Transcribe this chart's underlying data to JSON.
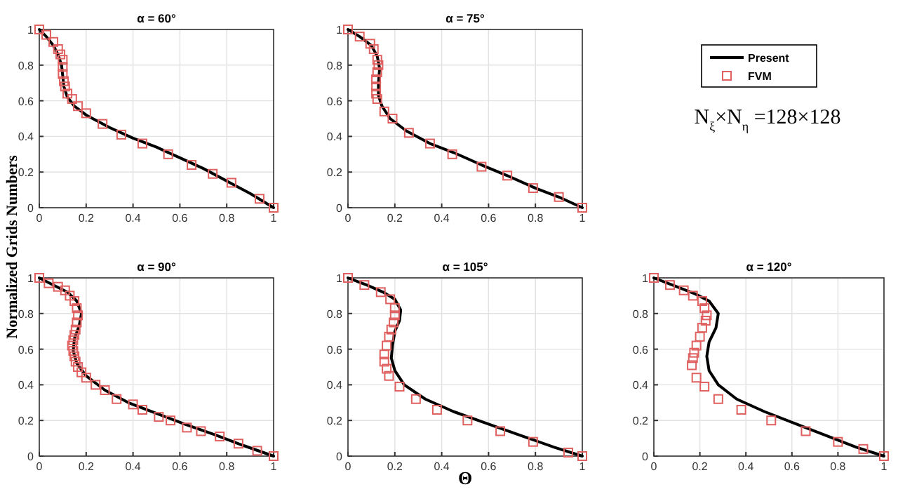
{
  "chart_data": [
    {
      "type": "line",
      "title": "α = 60°",
      "ylabel": "Normalized Grids Numbers",
      "xlim": [
        0,
        1
      ],
      "ylim": [
        0,
        1
      ],
      "xticks": [
        0,
        0.2,
        0.4,
        0.6,
        0.8,
        1
      ],
      "yticks": [
        0,
        0.2,
        0.4,
        0.6,
        0.8,
        1
      ],
      "grid": true,
      "series": [
        {
          "type": "line",
          "color": "#000000",
          "marker": "none",
          "x": [
            0,
            0.03,
            0.06,
            0.08,
            0.095,
            0.1,
            0.105,
            0.12,
            0.15,
            0.2,
            0.3,
            0.4,
            0.5,
            0.6,
            0.7,
            0.8,
            0.9,
            1
          ],
          "values": [
            1,
            0.96,
            0.91,
            0.86,
            0.8,
            0.74,
            0.68,
            0.62,
            0.57,
            0.52,
            0.45,
            0.39,
            0.34,
            0.28,
            0.22,
            0.15,
            0.08,
            0
          ]
        },
        {
          "type": "scatter",
          "color": "#e06060",
          "marker": "square",
          "x": [
            0,
            0.03,
            0.06,
            0.08,
            0.09,
            0.1,
            0.1,
            0.1,
            0.105,
            0.11,
            0.12,
            0.14,
            0.165,
            0.2,
            0.27,
            0.35,
            0.44,
            0.55,
            0.65,
            0.74,
            0.82,
            0.94,
            1
          ],
          "values": [
            1,
            0.97,
            0.93,
            0.89,
            0.86,
            0.83,
            0.79,
            0.75,
            0.71,
            0.68,
            0.64,
            0.61,
            0.57,
            0.53,
            0.47,
            0.41,
            0.36,
            0.3,
            0.24,
            0.19,
            0.14,
            0.05,
            0
          ]
        }
      ]
    },
    {
      "type": "line",
      "title": "α = 75°",
      "legend": "right",
      "xlim": [
        0,
        1
      ],
      "ylim": [
        0,
        1
      ],
      "xticks": [
        0,
        0.2,
        0.4,
        0.6,
        0.8,
        1
      ],
      "yticks": [
        0,
        0.2,
        0.4,
        0.6,
        0.8,
        1
      ],
      "grid": true,
      "series": [
        {
          "name": "Present",
          "type": "line",
          "color": "#000000",
          "marker": "none",
          "x": [
            0,
            0.05,
            0.1,
            0.125,
            0.135,
            0.13,
            0.13,
            0.145,
            0.18,
            0.25,
            0.35,
            0.45,
            0.57,
            0.68,
            0.8,
            0.9,
            1
          ],
          "values": [
            1,
            0.96,
            0.91,
            0.85,
            0.78,
            0.7,
            0.63,
            0.57,
            0.5,
            0.43,
            0.36,
            0.31,
            0.24,
            0.18,
            0.11,
            0.06,
            0
          ]
        },
        {
          "name": "FVM",
          "type": "scatter",
          "color": "#e06060",
          "marker": "square",
          "x": [
            0,
            0.05,
            0.095,
            0.11,
            0.125,
            0.13,
            0.125,
            0.12,
            0.12,
            0.12,
            0.125,
            0.155,
            0.19,
            0.26,
            0.35,
            0.445,
            0.57,
            0.68,
            0.79,
            0.9,
            1
          ],
          "values": [
            1,
            0.96,
            0.92,
            0.89,
            0.83,
            0.8,
            0.76,
            0.72,
            0.68,
            0.64,
            0.61,
            0.54,
            0.5,
            0.42,
            0.36,
            0.3,
            0.23,
            0.18,
            0.11,
            0.06,
            0
          ]
        }
      ]
    },
    {
      "type": "line",
      "title": "α = 90°",
      "xlim": [
        0,
        1
      ],
      "ylim": [
        0,
        1
      ],
      "xticks": [
        0,
        0.2,
        0.4,
        0.6,
        0.8,
        1
      ],
      "yticks": [
        0,
        0.2,
        0.4,
        0.6,
        0.8,
        1
      ],
      "grid": true,
      "series": [
        {
          "type": "line",
          "color": "#000000",
          "marker": "none",
          "x": [
            0,
            0.06,
            0.12,
            0.16,
            0.18,
            0.17,
            0.15,
            0.145,
            0.16,
            0.2,
            0.28,
            0.38,
            0.5,
            0.62,
            0.75,
            0.87,
            1
          ],
          "values": [
            1,
            0.96,
            0.92,
            0.87,
            0.8,
            0.73,
            0.66,
            0.59,
            0.52,
            0.45,
            0.37,
            0.3,
            0.24,
            0.18,
            0.12,
            0.06,
            0
          ]
        },
        {
          "type": "scatter",
          "color": "#e06060",
          "marker": "square",
          "x": [
            0,
            0.04,
            0.08,
            0.11,
            0.13,
            0.15,
            0.16,
            0.165,
            0.16,
            0.155,
            0.15,
            0.145,
            0.14,
            0.145,
            0.15,
            0.155,
            0.165,
            0.18,
            0.2,
            0.24,
            0.28,
            0.33,
            0.4,
            0.44,
            0.51,
            0.56,
            0.63,
            0.69,
            0.77,
            0.85,
            0.93,
            1
          ],
          "values": [
            1,
            0.97,
            0.95,
            0.93,
            0.9,
            0.87,
            0.83,
            0.79,
            0.75,
            0.71,
            0.68,
            0.65,
            0.62,
            0.59,
            0.56,
            0.53,
            0.5,
            0.47,
            0.44,
            0.4,
            0.37,
            0.32,
            0.29,
            0.26,
            0.22,
            0.2,
            0.16,
            0.14,
            0.11,
            0.07,
            0.03,
            0
          ]
        }
      ]
    },
    {
      "type": "line",
      "title": "α = 105°",
      "xlabel": "Θ",
      "xlim": [
        0,
        1
      ],
      "ylim": [
        0,
        1
      ],
      "xticks": [
        0,
        0.2,
        0.4,
        0.6,
        0.8,
        1
      ],
      "yticks": [
        0,
        0.2,
        0.4,
        0.6,
        0.8,
        1
      ],
      "grid": true,
      "series": [
        {
          "type": "line",
          "color": "#000000",
          "marker": "none",
          "x": [
            0,
            0.08,
            0.15,
            0.2,
            0.225,
            0.22,
            0.2,
            0.19,
            0.185,
            0.2,
            0.24,
            0.33,
            0.45,
            0.6,
            0.75,
            0.88,
            1
          ],
          "values": [
            1,
            0.96,
            0.92,
            0.88,
            0.82,
            0.76,
            0.7,
            0.62,
            0.55,
            0.48,
            0.4,
            0.32,
            0.25,
            0.18,
            0.11,
            0.05,
            0
          ]
        },
        {
          "type": "scatter",
          "color": "#e06060",
          "marker": "square",
          "x": [
            0,
            0.07,
            0.14,
            0.18,
            0.2,
            0.2,
            0.195,
            0.185,
            0.175,
            0.165,
            0.155,
            0.155,
            0.165,
            0.175,
            0.22,
            0.29,
            0.38,
            0.51,
            0.65,
            0.79,
            0.94,
            1
          ],
          "values": [
            1,
            0.96,
            0.92,
            0.88,
            0.83,
            0.79,
            0.75,
            0.71,
            0.67,
            0.62,
            0.57,
            0.53,
            0.49,
            0.45,
            0.39,
            0.32,
            0.26,
            0.2,
            0.14,
            0.08,
            0.02,
            0
          ]
        }
      ]
    },
    {
      "type": "line",
      "title": "α = 120°",
      "xlim": [
        0,
        1
      ],
      "ylim": [
        0,
        1
      ],
      "xticks": [
        0,
        0.2,
        0.4,
        0.6,
        0.8,
        1
      ],
      "yticks": [
        0,
        0.2,
        0.4,
        0.6,
        0.8,
        1
      ],
      "grid": true,
      "series": [
        {
          "type": "line",
          "color": "#000000",
          "marker": "none",
          "x": [
            0,
            0.1,
            0.18,
            0.24,
            0.28,
            0.27,
            0.24,
            0.23,
            0.24,
            0.28,
            0.36,
            0.48,
            0.62,
            0.76,
            0.88,
            1
          ],
          "values": [
            1,
            0.95,
            0.91,
            0.87,
            0.8,
            0.72,
            0.64,
            0.56,
            0.48,
            0.4,
            0.32,
            0.25,
            0.18,
            0.11,
            0.05,
            0
          ]
        },
        {
          "type": "scatter",
          "color": "#e06060",
          "marker": "square",
          "x": [
            0,
            0.07,
            0.13,
            0.17,
            0.21,
            0.22,
            0.23,
            0.225,
            0.21,
            0.2,
            0.185,
            0.175,
            0.17,
            0.165,
            0.185,
            0.22,
            0.28,
            0.38,
            0.51,
            0.66,
            0.8,
            0.91,
            1
          ],
          "values": [
            1,
            0.96,
            0.93,
            0.9,
            0.87,
            0.83,
            0.79,
            0.76,
            0.72,
            0.67,
            0.62,
            0.58,
            0.55,
            0.51,
            0.44,
            0.39,
            0.32,
            0.26,
            0.2,
            0.14,
            0.08,
            0.04,
            0
          ]
        }
      ]
    },
    {
      "type": "other",
      "annotations": [
        "N$_{ξ}$×N$_{η}$ =128×128"
      ]
    }
  ]
}
